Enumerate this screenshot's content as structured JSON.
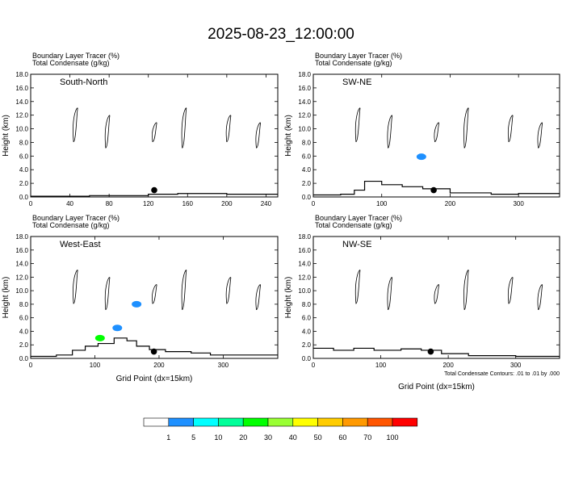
{
  "title": "2025-08-23_12:00:00",
  "colors": {
    "levels": [
      "#ffffff",
      "#1e90ff",
      "#00ffff",
      "#00ff99",
      "#00ff00",
      "#99ff33",
      "#ffff00",
      "#ffcc00",
      "#ff9900",
      "#ff5500",
      "#ff0000"
    ],
    "contour": "#000000"
  },
  "colorbar": {
    "labels": [
      "1",
      "5",
      "10",
      "20",
      "30",
      "40",
      "50",
      "60",
      "70",
      "100"
    ]
  },
  "chart_data": [
    {
      "type": "contour",
      "label_line1": "Boundary Layer Tracer   (%)",
      "label_line2": "Total Condensate   (g/kg)",
      "panel_name": "South-North",
      "xticks": [
        "0",
        "40",
        "80",
        "120",
        "160",
        "200",
        "240"
      ],
      "xlim": [
        0,
        252
      ],
      "yticks": [
        "0.0",
        "2.0",
        "4.0",
        "6.0",
        "8.0",
        "10.0",
        "12.0",
        "14.0",
        "16.0",
        "18.0"
      ],
      "ylim": [
        0,
        18
      ],
      "ylabel": "Height (km)",
      "xlabel": "",
      "marker": {
        "x": 126,
        "y": 1.0
      },
      "terrain": [
        [
          0,
          0.1
        ],
        [
          60,
          0.2
        ],
        [
          120,
          0.4
        ],
        [
          150,
          0.5
        ],
        [
          200,
          0.4
        ],
        [
          252,
          0.3
        ]
      ],
      "condensate": []
    },
    {
      "type": "contour",
      "label_line1": "Boundary Layer Tracer   (%)",
      "label_line2": "Total Condensate   (g/kg)",
      "panel_name": "SW-NE",
      "xticks": [
        "0",
        "100",
        "200",
        "300"
      ],
      "xlim": [
        0,
        360
      ],
      "yticks": [
        "0.0",
        "2.0",
        "4.0",
        "6.0",
        "8.0",
        "10.0",
        "12.0",
        "14.0",
        "16.0",
        "18.0"
      ],
      "ylim": [
        0,
        18
      ],
      "ylabel": "Height (km)",
      "xlabel": "",
      "marker": {
        "x": 176,
        "y": 1.0
      },
      "terrain": [
        [
          0,
          0.3
        ],
        [
          40,
          0.4
        ],
        [
          60,
          1.0
        ],
        [
          75,
          2.3
        ],
        [
          100,
          1.8
        ],
        [
          130,
          1.5
        ],
        [
          160,
          1.2
        ],
        [
          200,
          0.6
        ],
        [
          260,
          0.4
        ],
        [
          300,
          0.5
        ],
        [
          360,
          0.4
        ]
      ],
      "condensate": [
        {
          "x": 158,
          "y": 5.9,
          "level": 1
        }
      ]
    },
    {
      "type": "contour",
      "label_line1": "Boundary Layer Tracer   (%)",
      "label_line2": "Total Condensate   (g/kg)",
      "panel_name": "West-East",
      "xticks": [
        "0",
        "100",
        "200",
        "300"
      ],
      "xlim": [
        0,
        385
      ],
      "yticks": [
        "0.0",
        "2.0",
        "4.0",
        "6.0",
        "8.0",
        "10.0",
        "12.0",
        "14.0",
        "16.0",
        "18.0"
      ],
      "ylim": [
        0,
        18
      ],
      "ylabel": "Height (km)",
      "xlabel": "Grid Point (dx=15km)",
      "marker": {
        "x": 192,
        "y": 1.0
      },
      "terrain": [
        [
          0,
          0.3
        ],
        [
          40,
          0.5
        ],
        [
          65,
          1.2
        ],
        [
          85,
          1.8
        ],
        [
          105,
          2.2
        ],
        [
          130,
          3.0
        ],
        [
          150,
          2.6
        ],
        [
          165,
          1.8
        ],
        [
          185,
          1.3
        ],
        [
          210,
          1.0
        ],
        [
          250,
          0.8
        ],
        [
          280,
          0.5
        ],
        [
          385,
          0.4
        ]
      ],
      "condensate": [
        {
          "x": 135,
          "y": 4.5,
          "level": 1
        },
        {
          "x": 165,
          "y": 8.0,
          "level": 1
        },
        {
          "x": 108,
          "y": 3.0,
          "level": 4
        }
      ]
    },
    {
      "type": "contour",
      "label_line1": "Boundary Layer Tracer   (%)",
      "label_line2": "Total Condensate   (g/kg)",
      "panel_name": "NW-SE",
      "xticks": [
        "0",
        "100",
        "200",
        "300"
      ],
      "xlim": [
        0,
        365
      ],
      "yticks": [
        "0.0",
        "2.0",
        "4.0",
        "6.0",
        "8.0",
        "10.0",
        "12.0",
        "14.0",
        "16.0",
        "18.0"
      ],
      "ylim": [
        0,
        18
      ],
      "ylabel": "Height (km)",
      "xlabel": "Grid Point (dx=15km)",
      "marker": {
        "x": 174,
        "y": 1.0
      },
      "terrain": [
        [
          0,
          1.5
        ],
        [
          30,
          1.2
        ],
        [
          60,
          1.5
        ],
        [
          90,
          1.2
        ],
        [
          130,
          1.4
        ],
        [
          160,
          1.2
        ],
        [
          190,
          0.7
        ],
        [
          230,
          0.4
        ],
        [
          300,
          0.3
        ],
        [
          365,
          0.3
        ]
      ],
      "condensate": [],
      "note": "Total Condensate Contours: .01 to .01 by .000"
    }
  ]
}
